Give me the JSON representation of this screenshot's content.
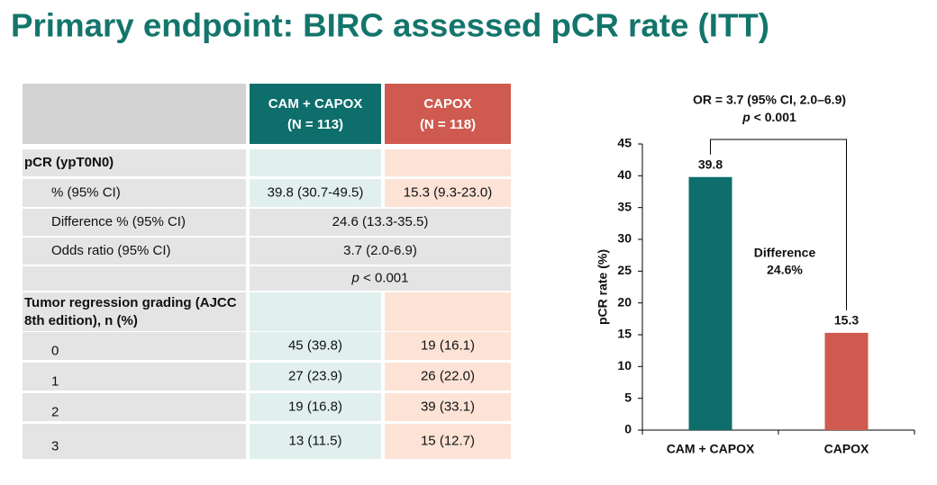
{
  "title": "Primary endpoint: BIRC assessed pCR rate (ITT)",
  "table": {
    "columns": [
      {
        "name": "CAM + CAPOX",
        "n": "(N = 113)"
      },
      {
        "name": "CAPOX",
        "n": "(N = 118)"
      }
    ],
    "rows": [
      {
        "label": "pCR (ypT0N0)"
      },
      {
        "label": "% (95% CI)",
        "cells": [
          "39.8 (30.7-49.5)",
          "15.3 (9.3-23.0)"
        ]
      },
      {
        "label": "Difference % (95% CI)",
        "span": "24.6 (13.3-35.5)"
      },
      {
        "label": "Odds ratio (95% CI)",
        "span": "3.7 (2.0-6.9)"
      },
      {
        "span_parts": [
          "p",
          " < 0.001"
        ]
      },
      {
        "label_lines": [
          "Tumor regression grading (AJCC",
          "8th edition), n (%)"
        ]
      },
      {
        "label": "0",
        "cells": [
          "45 (39.8)",
          "19 (16.1)"
        ]
      },
      {
        "label": "1",
        "cells": [
          "27 (23.9)",
          "26 (22.0)"
        ]
      },
      {
        "label": "2",
        "cells": [
          "19 (16.8)",
          "39 (33.1)"
        ]
      },
      {
        "label": "3",
        "cells": [
          "13 (11.5)",
          "15 (12.7)"
        ]
      }
    ]
  },
  "chart_data": {
    "type": "bar",
    "annotation": "OR = 3.7 (95% CI, 2.0–6.9)",
    "p_value": [
      "p",
      " < 0.001"
    ],
    "difference": [
      "Difference",
      "24.6%"
    ],
    "ylabel": "pCR rate (%)",
    "categories": [
      "CAM + CAPOX",
      "CAPOX"
    ],
    "values": [
      39.8,
      15.3
    ],
    "colors": [
      "#0e6e6c",
      "#cf5a4f"
    ],
    "ylim": [
      0,
      45
    ],
    "yticks": [
      0,
      5,
      10,
      15,
      20,
      25,
      30,
      35,
      40,
      45
    ]
  }
}
